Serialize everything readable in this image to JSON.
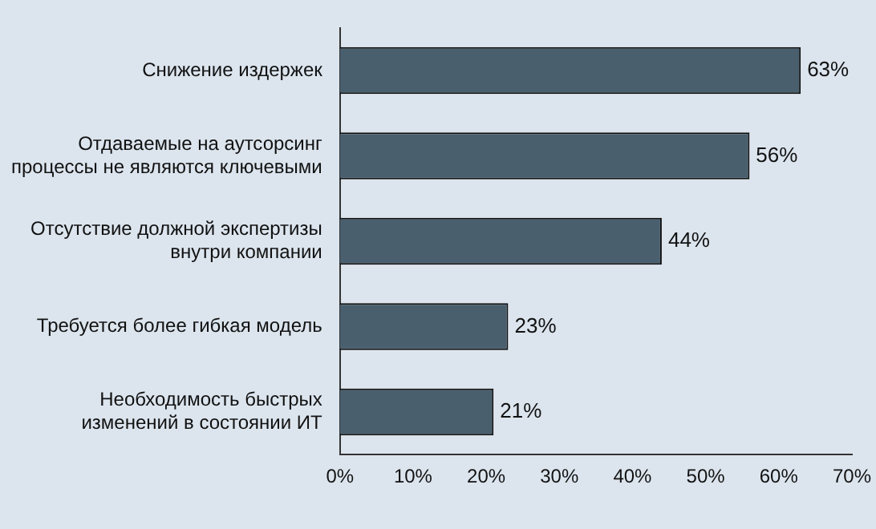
{
  "chart_data": {
    "type": "bar",
    "orientation": "horizontal",
    "categories": [
      "Снижение издержек",
      "Отдаваемые на аутсорсинг\nпроцессы не являются ключевыми",
      "Отсутствие должной экспертизы\nвнутри компании",
      "Требуется более гибкая модель",
      "Необходимость быстрых\nизменений в состоянии ИТ"
    ],
    "values": [
      63,
      56,
      44,
      23,
      21
    ],
    "value_labels": [
      "63%",
      "56%",
      "44%",
      "23%",
      "21%"
    ],
    "color": "#4a5f6e",
    "xlim": [
      0,
      70
    ],
    "xticks": [
      {
        "value": 0,
        "label": "0%"
      },
      {
        "value": 10,
        "label": "10%"
      },
      {
        "value": 20,
        "label": "20%"
      },
      {
        "value": 30,
        "label": "30%"
      },
      {
        "value": 40,
        "label": "40%"
      },
      {
        "value": 50,
        "label": "50%"
      },
      {
        "value": 60,
        "label": "60%"
      },
      {
        "value": 70,
        "label": "70%"
      }
    ],
    "grid": false,
    "legend": false
  }
}
